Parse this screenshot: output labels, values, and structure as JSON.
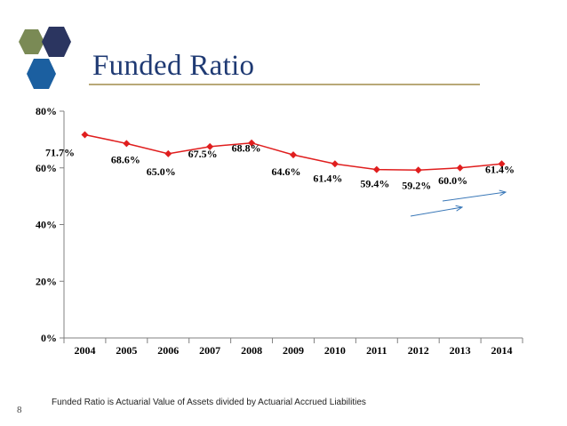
{
  "slide": {
    "title": "Funded Ratio",
    "footnote": "Funded Ratio is Actuarial Value of Assets divided by Actuarial Accrued Liabilities",
    "page_number": "8"
  },
  "colors": {
    "title": "#1f3a73",
    "series": "#e01e1e",
    "arrow": "#3a78b8",
    "hex_green": "#7a8a55",
    "hex_navy": "#2b3560",
    "hex_blue": "#1b5fa0"
  },
  "chart_data": {
    "type": "line",
    "title": "",
    "xlabel": "",
    "ylabel": "",
    "categories": [
      "2004",
      "2005",
      "2006",
      "2007",
      "2008",
      "2009",
      "2010",
      "2011",
      "2012",
      "2013",
      "2014"
    ],
    "series": [
      {
        "values": [
          71.7,
          68.6,
          65.0,
          67.5,
          68.8,
          64.6,
          61.4,
          59.4,
          59.2,
          60.0,
          61.4
        ]
      }
    ],
    "data_labels": [
      "71.7%",
      "68.6%",
      "65.0%",
      "67.5%",
      "68.8%",
      "64.6%",
      "61.4%",
      "59.4%",
      "59.2%",
      "60.0%",
      "61.4%"
    ],
    "ylim": [
      0,
      80
    ],
    "yticks": [
      0,
      20,
      40,
      60,
      80
    ],
    "ytick_labels": [
      "0%",
      "20%",
      "40%",
      "60%",
      "80%"
    ],
    "grid": false,
    "marker": "diamond",
    "annotations": [
      "two upward-trend arrows near 2012–2014"
    ]
  }
}
